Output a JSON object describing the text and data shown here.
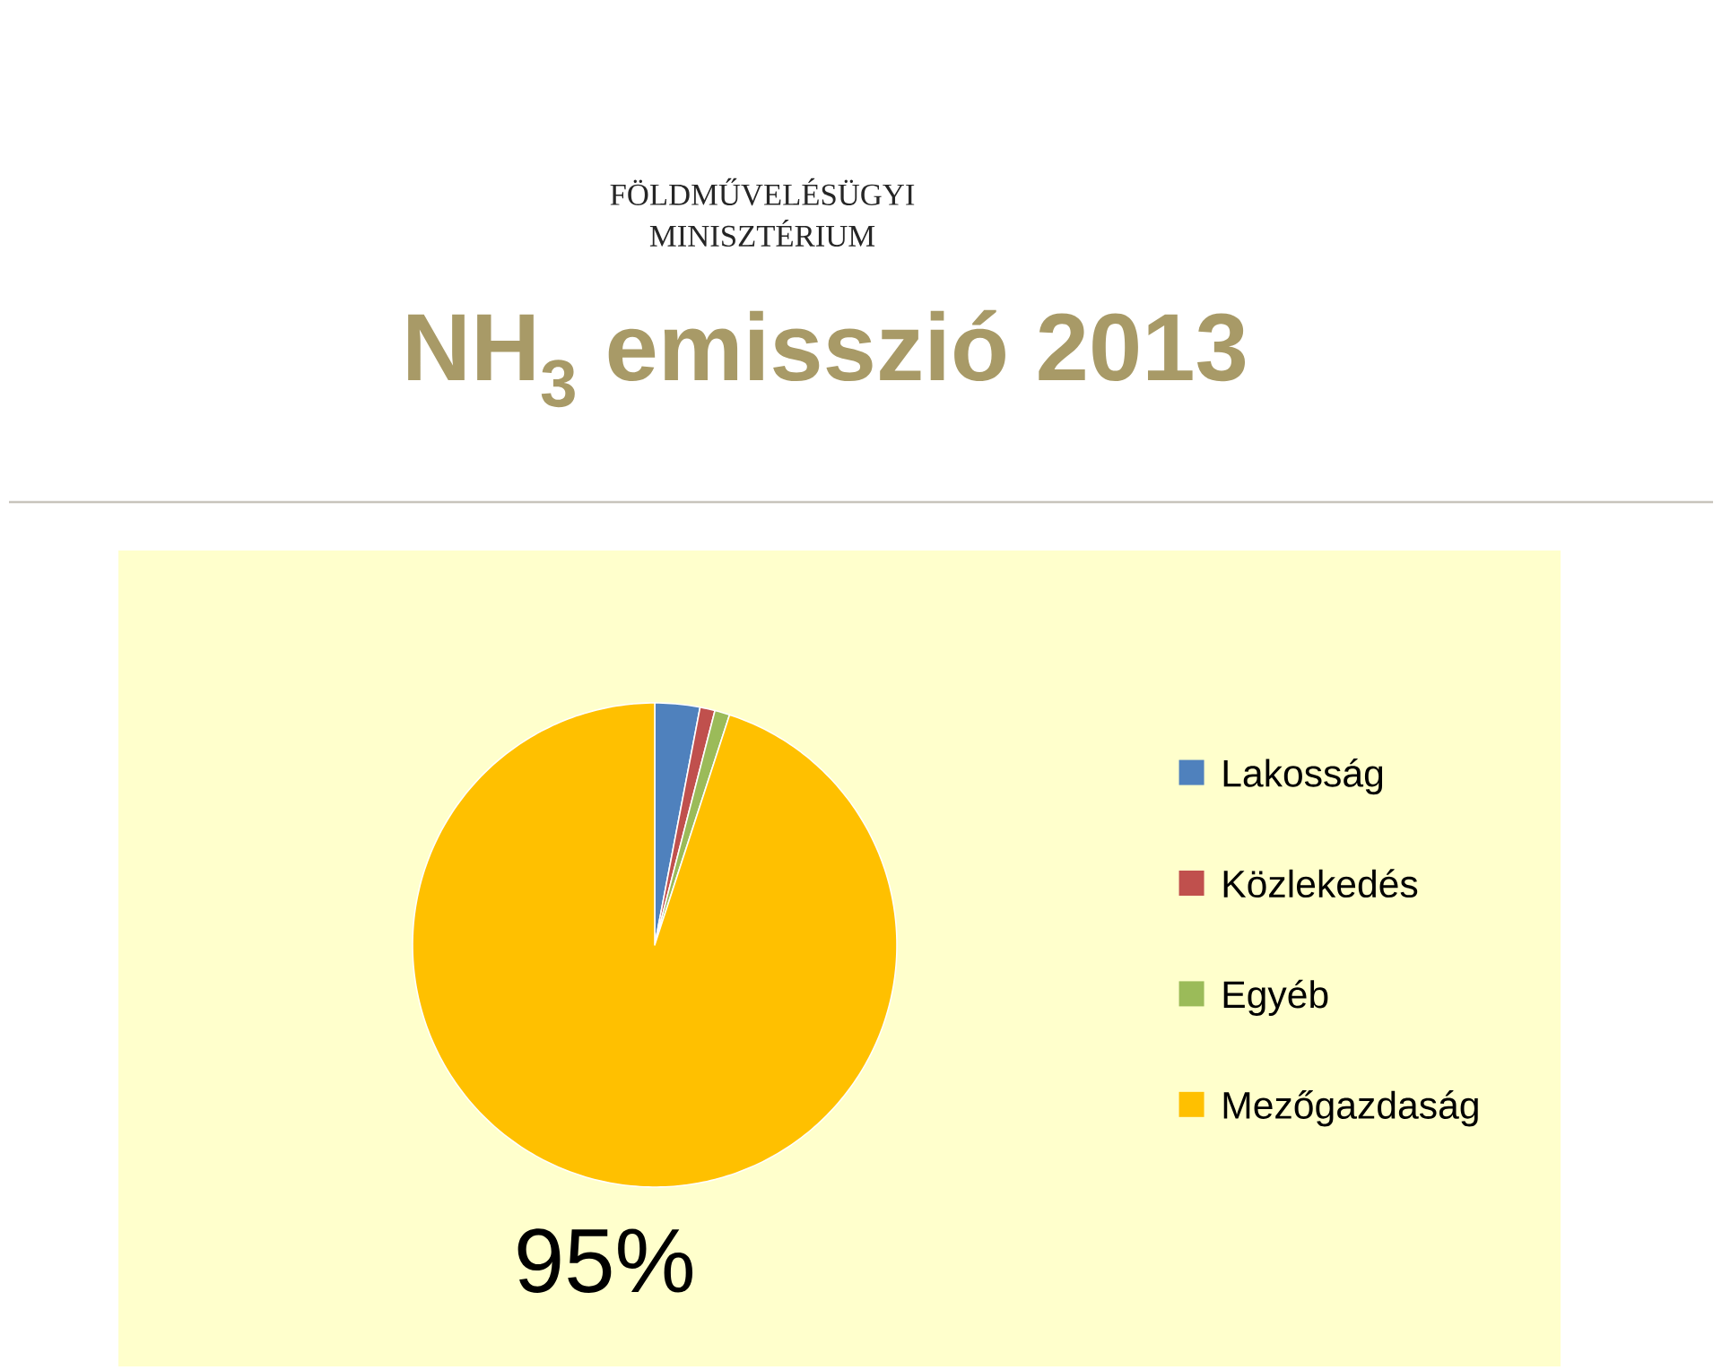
{
  "chart_data": {
    "type": "pie",
    "title": "NH$_{3}$ emisszió 2013",
    "annotations": [
      "FÖLDMŰVELÉSÜGYI",
      "MINISZTÉRIUM"
    ],
    "categories": [
      "Lakosság",
      "Közlekedés",
      "Egyéb",
      "Mezőgazdaság"
    ],
    "values": [
      3,
      1,
      1,
      95
    ],
    "colors": [
      "#4f81bd",
      "#c0504d",
      "#9bbb59",
      "#ffc000"
    ],
    "value_labels": [
      null,
      null,
      null,
      "95%"
    ],
    "legend": "right"
  }
}
